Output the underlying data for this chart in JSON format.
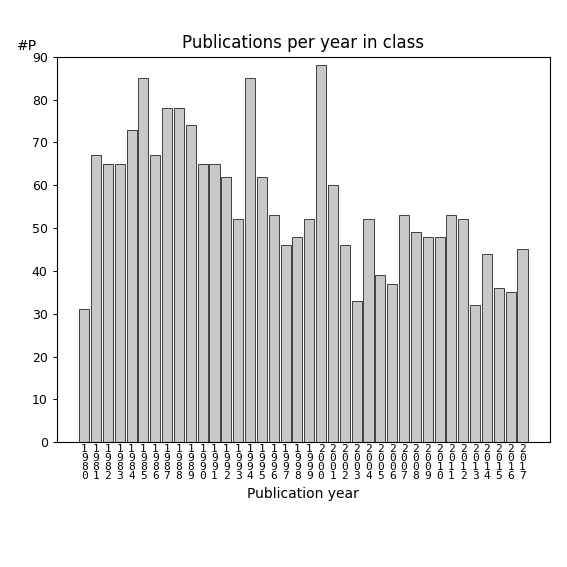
{
  "title": "Publications per year in class",
  "xlabel": "Publication year",
  "ylabel": "#P",
  "years": [
    1980,
    1981,
    1982,
    1983,
    1984,
    1985,
    1986,
    1987,
    1988,
    1989,
    1990,
    1991,
    1992,
    1993,
    1994,
    1995,
    1996,
    1997,
    1998,
    1999,
    2000,
    2001,
    2002,
    2003,
    2004,
    2005,
    2006,
    2007,
    2008,
    2009,
    2010,
    2011,
    2012,
    2013,
    2014,
    2015,
    2016,
    2017
  ],
  "values": [
    31,
    67,
    65,
    65,
    73,
    85,
    67,
    78,
    78,
    74,
    65,
    65,
    62,
    52,
    85,
    62,
    53,
    46,
    48,
    52,
    88,
    60,
    46,
    33,
    52,
    39,
    37,
    53,
    49,
    48,
    48,
    53,
    52,
    32,
    44,
    36,
    35,
    45
  ],
  "bar_color": "#c8c8c8",
  "bar_edgecolor": "#000000",
  "ylim": [
    0,
    90
  ],
  "yticks": [
    0,
    10,
    20,
    30,
    40,
    50,
    60,
    70,
    80,
    90
  ],
  "bg_color": "#ffffff",
  "title_fontsize": 12,
  "axis_label_fontsize": 10,
  "tick_fontsize": 9,
  "ylabel_fontsize": 10
}
